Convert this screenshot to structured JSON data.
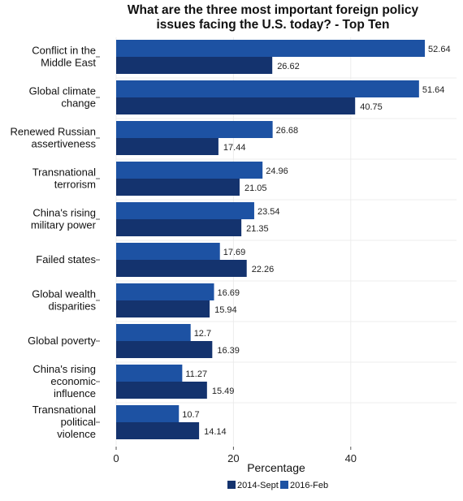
{
  "chart_data": {
    "type": "bar",
    "orientation": "horizontal",
    "title": "What are the three most important foreign policy issues facing the U.S. today? - Top Ten",
    "title_lines": [
      "What are the three most important foreign policy",
      "issues facing the U.S. today? - Top Ten"
    ],
    "xlabel": "Percentage",
    "ylabel": "",
    "xlim": [
      0,
      55
    ],
    "xticks": [
      0,
      20,
      40
    ],
    "grid": true,
    "legend_position": "bottom",
    "categories": [
      [
        "Conflict in the",
        "Middle East"
      ],
      [
        "Global climate",
        "change"
      ],
      [
        "Renewed Russian",
        "assertiveness"
      ],
      [
        "Transnational",
        "terrorism"
      ],
      [
        "China's rising",
        "military power"
      ],
      [
        "Failed states"
      ],
      [
        "Global wealth",
        "disparities"
      ],
      [
        "Global poverty"
      ],
      [
        "China's rising",
        "economic",
        "influence"
      ],
      [
        "Transnational",
        "political",
        "violence"
      ]
    ],
    "series": [
      {
        "name": "2014-Sept",
        "color": "#14336e",
        "values": [
          26.62,
          40.75,
          17.44,
          21.05,
          21.35,
          22.26,
          15.94,
          16.39,
          15.49,
          14.14
        ]
      },
      {
        "name": "2016-Feb",
        "color": "#1d52a3",
        "values": [
          52.64,
          51.64,
          26.68,
          24.96,
          23.54,
          17.69,
          16.69,
          12.7,
          11.27,
          10.7
        ]
      }
    ]
  }
}
